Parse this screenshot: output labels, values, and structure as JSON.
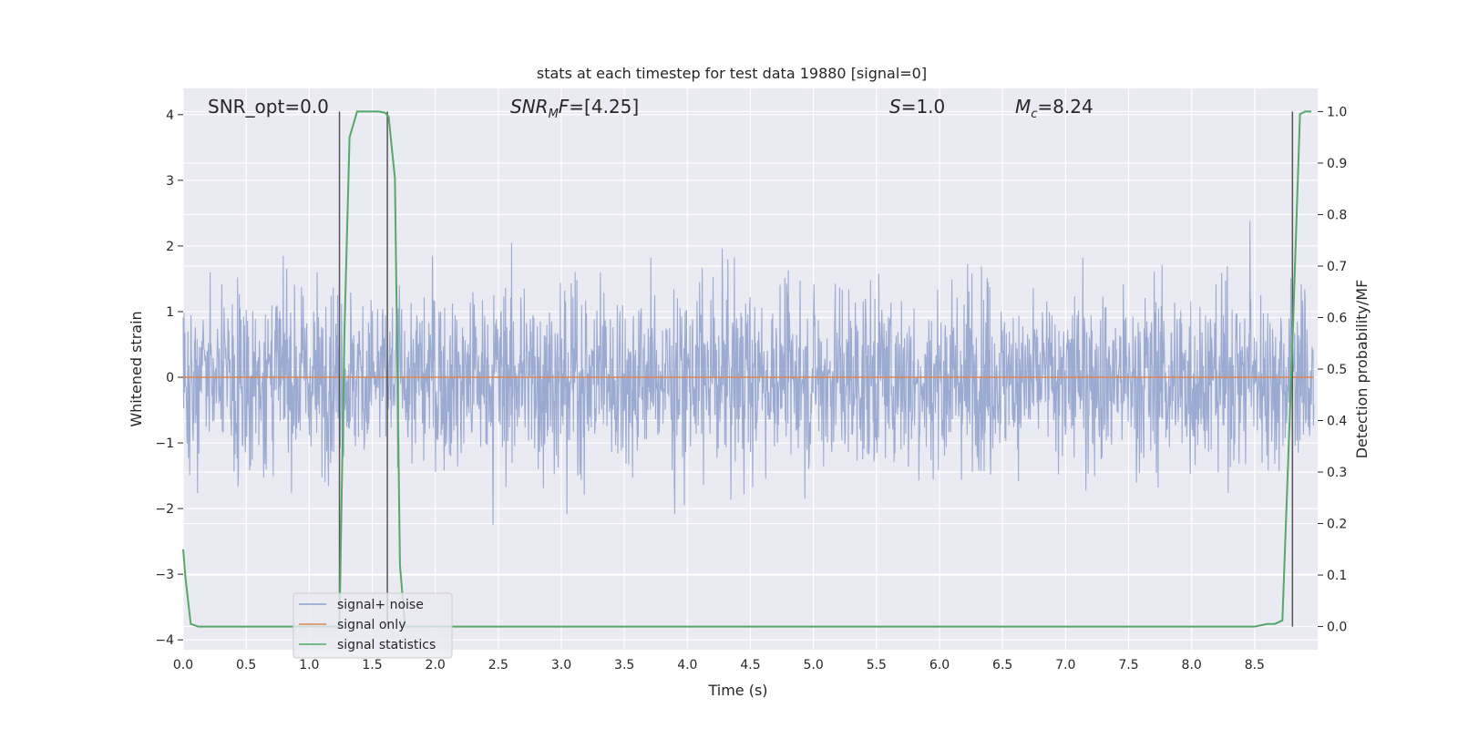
{
  "chart_data": {
    "type": "line",
    "title": "stats at each timestep for test data 19880 [signal=0]",
    "xlabel": "Time (s)",
    "ylabel": "Whitened strain",
    "y2label": "Detection probability/MF",
    "xlim": [
      0.0,
      9.0
    ],
    "ylim": [
      -4.15,
      4.4
    ],
    "y2lim": [
      -0.045,
      1.045
    ],
    "xticks": [
      "0.0",
      "0.5",
      "1.0",
      "1.5",
      "2.0",
      "2.5",
      "3.0",
      "3.5",
      "4.0",
      "4.5",
      "5.0",
      "5.5",
      "6.0",
      "6.5",
      "7.0",
      "7.5",
      "8.0",
      "8.5"
    ],
    "yticks": [
      "4",
      "3",
      "2",
      "1",
      "0",
      "−1",
      "−2",
      "−3",
      "−4"
    ],
    "y2ticks": [
      "1.0",
      "0.9",
      "0.8",
      "0.7",
      "0.6",
      "0.5",
      "0.4",
      "0.3",
      "0.2",
      "0.1",
      "0.0"
    ],
    "grid": true,
    "legend_position": "lower-left",
    "annotations": {
      "snr_opt": "SNR_opt=0.0",
      "snr_mf_base": "SNR",
      "snr_mf_sub": "M",
      "snr_mf_tail": "F",
      "snr_mf_value": "=[4.25]",
      "s_symbol": "S",
      "s_value": "=1.0",
      "mc_base": "M",
      "mc_sub": "c",
      "mc_value": "=8.24"
    },
    "series": [
      {
        "name": "signal+ noise",
        "color": "#8c9fcb",
        "description_points": "dense whitened noise, approx within ±2 with spikes to ±4",
        "seed": 19880
      },
      {
        "name": "signal only",
        "color": "#dd8452",
        "values_constant": 0.0
      },
      {
        "name": "signal statistics",
        "color": "#55a868",
        "axis": "right",
        "x": [
          0.0,
          0.02,
          0.06,
          0.12,
          0.3,
          1.2,
          1.24,
          1.28,
          1.32,
          1.38,
          1.45,
          1.55,
          1.6,
          1.63,
          1.68,
          1.72,
          1.76,
          1.85,
          3.0,
          5.0,
          7.0,
          8.5,
          8.56,
          8.6,
          8.66,
          8.72,
          8.8,
          8.86,
          8.9,
          8.95
        ],
        "y": [
          0.15,
          0.09,
          0.005,
          0.0,
          0.0,
          0.0,
          0.0,
          0.58,
          0.95,
          1.0,
          1.0,
          1.0,
          0.998,
          0.99,
          0.87,
          0.12,
          0.0,
          0.0,
          0.0,
          0.0,
          0.0,
          0.0,
          0.003,
          0.005,
          0.005,
          0.012,
          0.55,
          0.995,
          1.0,
          1.0
        ]
      }
    ],
    "vlines_x": [
      1.24,
      1.62,
      8.8
    ]
  }
}
